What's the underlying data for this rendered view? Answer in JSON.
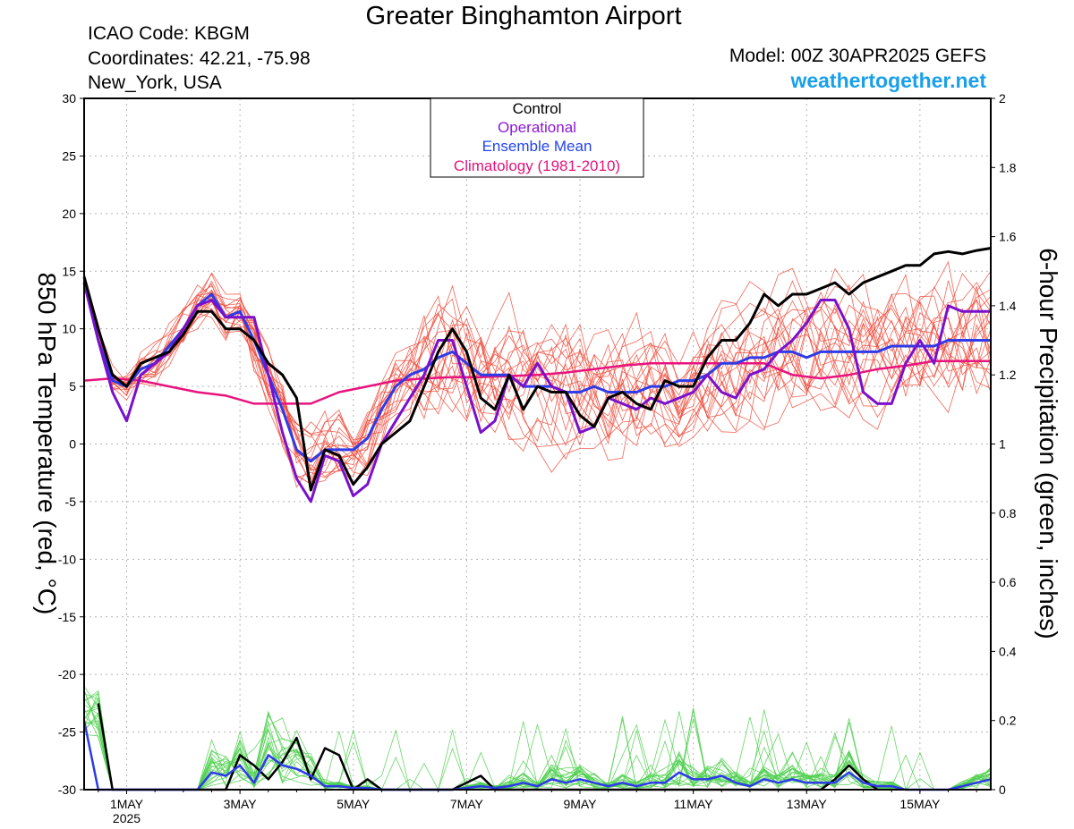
{
  "header": {
    "title": "Greater Binghamton Airport",
    "icao": "ICAO Code: KBGM",
    "coordinates": "Coordinates: 42.21, -75.98",
    "location": "New_York, USA",
    "model": "Model: 00Z 30APR2025 GEFS",
    "site": "weathertogether.net"
  },
  "colors": {
    "control": "#000000",
    "operational": "#7a10cc",
    "ensemble_mean": "#2d3be8",
    "climatology": "#e8137d",
    "members_temp": "#f04a3a",
    "members_precip": "#4ecf4e",
    "legend_operational": "#8a1ad6",
    "legend_mean": "#2244ee",
    "legend_clim": "#e0157a"
  },
  "chart_data": {
    "type": "line",
    "xlabel": "",
    "ylabel_left": "850 hPa Temperature (red, °C)",
    "ylabel_right": "6-hour Precipitation (green, inches)",
    "ylim_left": [
      -30,
      30
    ],
    "ylim_right": [
      0,
      2
    ],
    "x_range_days": [
      0,
      16
    ],
    "yticks_left": [
      "30",
      "25",
      "20",
      "15",
      "10",
      "5",
      "0",
      "-5",
      "-10",
      "-15",
      "-20",
      "-25",
      "-30"
    ],
    "yticks_right": [
      "2",
      "1.8",
      "1.6",
      "1.4",
      "1.2",
      "1",
      "0.8",
      "0.6",
      "0.4",
      "0.2",
      "0"
    ],
    "xticks": [
      {
        "day": 0.75,
        "label": "1MAY",
        "sub": "2025"
      },
      {
        "day": 2.75,
        "label": "3MAY",
        "sub": ""
      },
      {
        "day": 4.75,
        "label": "5MAY",
        "sub": ""
      },
      {
        "day": 6.75,
        "label": "7MAY",
        "sub": ""
      },
      {
        "day": 8.75,
        "label": "9MAY",
        "sub": ""
      },
      {
        "day": 10.75,
        "label": "11MAY",
        "sub": ""
      },
      {
        "day": 12.75,
        "label": "13MAY",
        "sub": ""
      },
      {
        "day": 14.75,
        "label": "15MAY",
        "sub": ""
      }
    ],
    "legend": {
      "placement": "top-center",
      "entries": [
        "Control",
        "Operational",
        "Ensemble Mean",
        "Climatology (1981-2010)"
      ]
    },
    "grid": true,
    "series": [
      {
        "name": "Control",
        "axis": "left",
        "x": [
          0,
          0.25,
          0.5,
          0.75,
          1,
          1.25,
          1.5,
          1.75,
          2,
          2.25,
          2.5,
          2.75,
          3,
          3.25,
          3.5,
          3.75,
          4,
          4.25,
          4.5,
          4.75,
          5,
          5.25,
          5.5,
          5.75,
          6,
          6.25,
          6.5,
          6.75,
          7,
          7.25,
          7.5,
          7.75,
          8,
          8.25,
          8.5,
          8.75,
          9,
          9.25,
          9.5,
          9.75,
          10,
          10.25,
          10.5,
          10.75,
          11,
          11.25,
          11.5,
          11.75,
          12,
          12.25,
          12.5,
          12.75,
          13,
          13.25,
          13.5,
          13.75,
          14,
          14.25,
          14.5,
          14.75,
          15,
          15.25,
          15.5,
          15.75,
          16
        ],
        "values": [
          14.5,
          10,
          6,
          5,
          7,
          7.5,
          8,
          9.5,
          11.5,
          11.5,
          10,
          10,
          9,
          7,
          6,
          4,
          -4,
          -0.5,
          -1,
          -3.5,
          -2,
          0,
          1,
          2,
          5,
          8,
          10,
          8,
          4,
          3,
          6,
          3,
          5,
          4.5,
          4.5,
          2.5,
          1.5,
          4,
          4.5,
          3.5,
          3,
          5.5,
          5,
          5,
          7.5,
          9,
          9,
          10.5,
          13,
          12,
          13,
          13,
          13.5,
          14,
          13,
          14,
          14.5,
          15,
          15.5,
          15.5,
          16.5,
          16.7,
          16.5,
          16.8,
          17
        ]
      },
      {
        "name": "Operational",
        "axis": "left",
        "x": [
          0,
          0.25,
          0.5,
          0.75,
          1,
          1.25,
          1.5,
          1.75,
          2,
          2.25,
          2.5,
          2.75,
          3,
          3.25,
          3.5,
          3.75,
          4,
          4.25,
          4.5,
          4.75,
          5,
          5.25,
          5.5,
          5.75,
          6,
          6.25,
          6.5,
          6.75,
          7,
          7.25,
          7.5,
          7.75,
          8,
          8.25,
          8.5,
          8.75,
          9,
          9.25,
          9.5,
          9.75,
          10,
          10.25,
          10.5,
          10.75,
          11,
          11.25,
          11.5,
          11.75,
          12,
          12.25,
          12.5,
          12.75,
          13,
          13.25,
          13.5,
          13.75,
          14,
          14.25,
          14.5,
          14.75,
          15,
          15.25,
          15.5,
          15.75,
          16
        ],
        "values": [
          14,
          9,
          4.5,
          2,
          6,
          7,
          8,
          10,
          12,
          12.5,
          11,
          11,
          11,
          6,
          1,
          -3,
          -5,
          -1,
          -1.5,
          -4.5,
          -3.5,
          0,
          2,
          4,
          6,
          9,
          9,
          5,
          1,
          2,
          6,
          5,
          7,
          5,
          4.5,
          1,
          1.5,
          4,
          3.5,
          3,
          4,
          3.5,
          4,
          4.5,
          6,
          4.5,
          4,
          6,
          6.5,
          8,
          9,
          10.5,
          12.5,
          12.5,
          10,
          4.5,
          3.5,
          3.5,
          7,
          9,
          7,
          12,
          11.5,
          11.5,
          11.5
        ]
      },
      {
        "name": "Ensemble Mean",
        "axis": "left",
        "x": [
          0,
          0.25,
          0.5,
          0.75,
          1,
          1.25,
          1.5,
          1.75,
          2,
          2.25,
          2.5,
          2.75,
          3,
          3.25,
          3.5,
          3.75,
          4,
          4.25,
          4.5,
          4.75,
          5,
          5.25,
          5.5,
          5.75,
          6,
          6.25,
          6.5,
          6.75,
          7,
          7.25,
          7.5,
          7.75,
          8,
          8.25,
          8.5,
          8.75,
          9,
          9.25,
          9.5,
          9.75,
          10,
          10.25,
          10.5,
          10.75,
          11,
          11.25,
          11.5,
          11.75,
          12,
          12.25,
          12.5,
          12.75,
          13,
          13.25,
          13.5,
          13.75,
          14,
          14.25,
          14.5,
          14.75,
          15,
          15.25,
          15.5,
          15.75,
          16
        ],
        "values": [
          14,
          9,
          5.5,
          5,
          6.5,
          7,
          8.5,
          10,
          12,
          13,
          11,
          11.5,
          9,
          6,
          3,
          -0.5,
          -1.5,
          -0.5,
          -0.5,
          -0.5,
          0.5,
          3,
          5,
          6,
          6.5,
          7.5,
          8,
          7,
          6,
          6,
          6,
          5,
          5,
          5,
          4.5,
          4.5,
          5,
          4.5,
          4.5,
          4.5,
          5,
          5,
          5.5,
          5.5,
          6,
          7,
          7,
          7.5,
          7.5,
          8,
          8,
          7.5,
          8,
          8,
          8,
          8,
          8,
          8.5,
          8.5,
          8.5,
          8.5,
          9,
          9,
          9,
          9
        ]
      },
      {
        "name": "Climatology (1981-2010)",
        "axis": "left",
        "x": [
          0,
          0.5,
          1,
          1.5,
          2,
          2.5,
          3,
          3.5,
          4,
          4.5,
          5,
          5.5,
          6,
          6.5,
          7,
          7.5,
          8,
          8.5,
          9,
          9.5,
          10,
          10.5,
          11,
          11.5,
          12,
          12.5,
          13,
          13.5,
          14,
          14.5,
          15,
          15.5,
          16
        ],
        "values": [
          5.5,
          5.7,
          5.5,
          5,
          4.5,
          4.2,
          3.5,
          3.5,
          3.5,
          4.5,
          5,
          5.5,
          5.7,
          5.8,
          5.8,
          5.9,
          6,
          6.2,
          6.5,
          6.8,
          7,
          7,
          7,
          7,
          7,
          6,
          5.7,
          6,
          6.5,
          6.8,
          7.2,
          7.2,
          7.2
        ]
      },
      {
        "name": "Control precip",
        "axis": "right",
        "x": [
          0.25,
          0.5,
          2,
          2.5,
          2.75,
          3,
          3.25,
          3.5,
          3.75,
          4,
          4.25,
          4.5,
          4.75,
          5,
          5.25,
          6,
          6.5,
          6.75,
          7,
          7.25,
          7.5,
          13,
          13.25,
          13.5,
          13.75,
          14
        ],
        "values": [
          0.25,
          0,
          0,
          0,
          0.1,
          0.07,
          0.03,
          0.08,
          0.15,
          0.03,
          0.12,
          0.1,
          0,
          0.03,
          0,
          0,
          0,
          0.02,
          0.04,
          0,
          0,
          0,
          0.03,
          0.07,
          0.03,
          0
        ]
      },
      {
        "name": "Ensemble mean precip",
        "axis": "right",
        "x": [
          0,
          0.25,
          0.5,
          0.75,
          1,
          1.25,
          1.5,
          1.75,
          2,
          2.25,
          2.5,
          2.75,
          3,
          3.25,
          3.5,
          3.75,
          4,
          4.25,
          4.5,
          4.75,
          5,
          5.25,
          5.5,
          5.75,
          6,
          6.25,
          6.5,
          6.75,
          7,
          7.25,
          7.5,
          7.75,
          8,
          8.25,
          8.5,
          8.75,
          9,
          9.25,
          9.5,
          9.75,
          10,
          10.25,
          10.5,
          10.75,
          11,
          11.25,
          11.5,
          11.75,
          12,
          12.25,
          12.5,
          12.75,
          13,
          13.25,
          13.5,
          13.75,
          14,
          14.25,
          14.5,
          14.75,
          15,
          15.25,
          15.5,
          15.75,
          16
        ],
        "values": [
          0.2,
          0,
          0,
          0,
          0,
          0,
          0,
          0,
          0,
          0.05,
          0.04,
          0.07,
          0.02,
          0.1,
          0.07,
          0.06,
          0.04,
          0.01,
          0.01,
          0.005,
          0.005,
          0,
          0,
          0,
          0,
          0,
          0,
          0.005,
          0.01,
          0.005,
          0.01,
          0.02,
          0.01,
          0.03,
          0.02,
          0.03,
          0.02,
          0.01,
          0.02,
          0.01,
          0.02,
          0.02,
          0.05,
          0.03,
          0.03,
          0.04,
          0.02,
          0.01,
          0.03,
          0.02,
          0.03,
          0.02,
          0.02,
          0.02,
          0.05,
          0.02,
          0.01,
          0.01,
          0,
          0,
          0,
          0,
          0.01,
          0.02,
          0.03
        ]
      }
    ]
  }
}
